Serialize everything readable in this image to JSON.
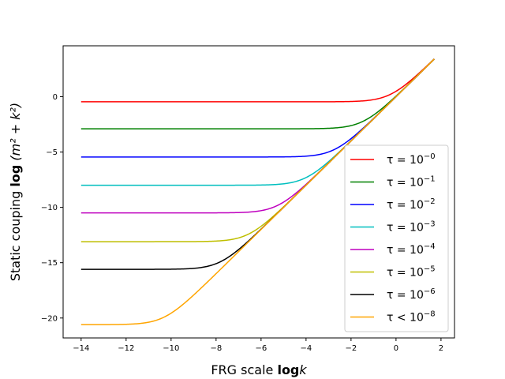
{
  "chart_data": {
    "type": "line",
    "title": "",
    "xlabel": {
      "prefix": "FRG scale ",
      "bold": "log",
      "suffix": "k"
    },
    "ylabel": {
      "prefix": "Static couping  ",
      "bold": "log",
      "suffix": " (m² + k²)"
    },
    "xlim": [
      -14.8,
      2.6
    ],
    "ylim": [
      -21.8,
      4.6
    ],
    "x_ticks": [
      -14,
      -12,
      -10,
      -8,
      -6,
      -4,
      -2,
      0,
      2
    ],
    "x_tick_labels": [
      "−14",
      "−12",
      "−10",
      "−8",
      "−6",
      "−4",
      "−2",
      "0",
      "2"
    ],
    "y_ticks": [
      0,
      -5,
      -10,
      -15,
      -20
    ],
    "y_tick_labels": [
      "0",
      "−5",
      "−10",
      "−15",
      "−20"
    ],
    "x_range": [
      -14,
      1.7
    ],
    "legend_position": "lower right",
    "series": [
      {
        "name": "τ = 10⁻⁰",
        "label_base": "τ = 10",
        "label_exp": "−0",
        "color": "#ff0000",
        "plateau": -0.46,
        "diag_slope": 2.0,
        "diag_offset": 0.0
      },
      {
        "name": "τ = 10⁻¹",
        "label_base": "τ = 10",
        "label_exp": "−1",
        "color": "#008000",
        "plateau": -2.9,
        "diag_slope": 2.0,
        "diag_offset": 0.0
      },
      {
        "name": "τ = 10⁻²",
        "label_base": "τ = 10",
        "label_exp": "−2",
        "color": "#0000ff",
        "plateau": -5.45,
        "diag_slope": 2.0,
        "diag_offset": 0.0
      },
      {
        "name": "τ = 10⁻³",
        "label_base": "τ = 10",
        "label_exp": "−3",
        "color": "#00bfbf",
        "plateau": -8.0,
        "diag_slope": 2.0,
        "diag_offset": 0.0
      },
      {
        "name": "τ = 10⁻⁴",
        "label_base": "τ = 10",
        "label_exp": "−4",
        "color": "#bf00bf",
        "plateau": -10.5,
        "diag_slope": 2.0,
        "diag_offset": 0.0
      },
      {
        "name": "τ = 10⁻⁵",
        "label_base": "τ = 10",
        "label_exp": "−5",
        "color": "#bfbf00",
        "plateau": -13.1,
        "diag_slope": 2.0,
        "diag_offset": 0.0
      },
      {
        "name": "τ = 10⁻⁶",
        "label_base": "τ = 10",
        "label_exp": "−6",
        "color": "#000000",
        "plateau": -15.6,
        "diag_slope": 2.0,
        "diag_offset": 0.0
      },
      {
        "name": "τ < 10⁻⁸",
        "label_base": "τ < 10",
        "label_exp": "−8",
        "color": "#ffa500",
        "plateau": -20.6,
        "diag_slope": 2.0,
        "diag_offset": 0.0
      }
    ]
  }
}
